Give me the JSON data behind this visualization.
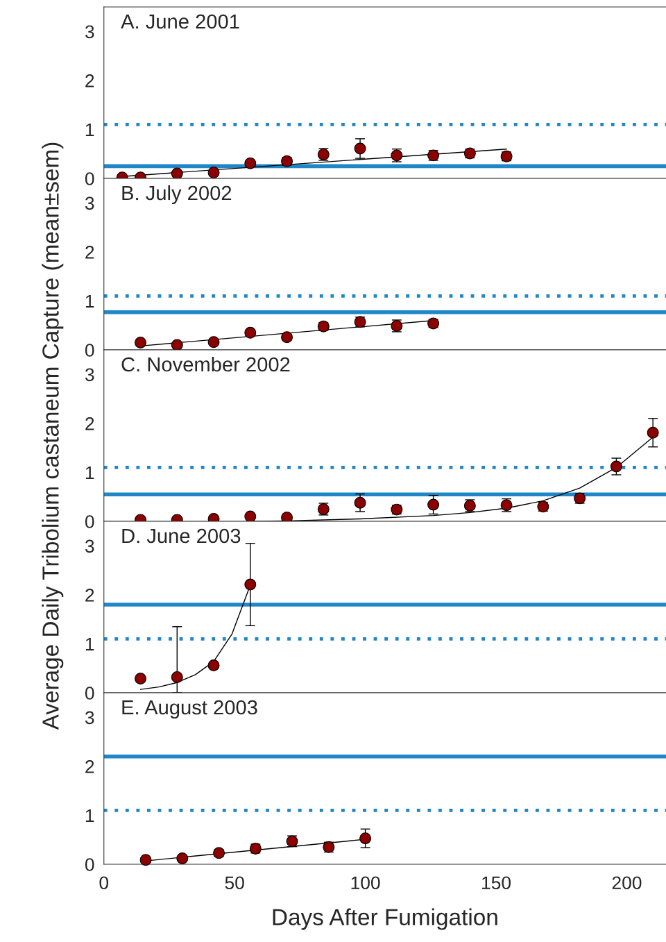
{
  "chart_data": [
    {
      "type": "scatter",
      "title": "A. June 2001",
      "xlim": [
        0,
        215
      ],
      "xticks": [
        0,
        50,
        100,
        150,
        200
      ],
      "ylim": [
        0,
        3.5
      ],
      "yticks": [
        0,
        1,
        2,
        3
      ],
      "tick_labels": "y",
      "series": [
        {
          "marker": "circle",
          "color": "#8b0000",
          "x": [
            7,
            14,
            28,
            42,
            56,
            70,
            84,
            98,
            112,
            126,
            140,
            154
          ],
          "values": [
            0.02,
            0.02,
            0.1,
            0.12,
            0.31,
            0.35,
            0.49,
            0.61,
            0.47,
            0.47,
            0.51,
            0.45
          ],
          "errors": [
            null,
            null,
            null,
            null,
            0.04,
            0.08,
            0.12,
            0.2,
            0.13,
            0.1,
            0.09,
            0.09
          ]
        },
        {
          "type": "line",
          "marker": "none",
          "color": "#000000",
          "x": [
            7,
            154
          ],
          "values": [
            0.04,
            0.6
          ]
        }
      ],
      "ref_lines": [
        {
          "axis": "y",
          "value": 0.25,
          "color": "#1f87c8",
          "line_style": "solid"
        },
        {
          "axis": "y",
          "value": 1.1,
          "color": "#1f87c8",
          "line_style": "dotted"
        }
      ]
    },
    {
      "type": "scatter",
      "title": "B. July 2002",
      "xlim": [
        0,
        215
      ],
      "xticks": [
        0,
        50,
        100,
        150,
        200
      ],
      "ylim": [
        0,
        3.5
      ],
      "yticks": [
        0,
        1,
        2,
        3
      ],
      "tick_labels": "y",
      "series": [
        {
          "marker": "circle",
          "color": "#8b0000",
          "x": [
            14,
            28,
            42,
            56,
            70,
            84,
            98,
            112,
            126
          ],
          "values": [
            0.15,
            0.1,
            0.16,
            0.35,
            0.26,
            0.48,
            0.57,
            0.49,
            0.54
          ],
          "errors": [
            0.05,
            0.03,
            0.04,
            0.06,
            0.06,
            0.08,
            0.1,
            0.12,
            0.08
          ]
        },
        {
          "type": "line",
          "marker": "none",
          "color": "#000000",
          "x": [
            14,
            126
          ],
          "values": [
            0.08,
            0.6
          ]
        }
      ],
      "ref_lines": [
        {
          "axis": "y",
          "value": 0.77,
          "color": "#1f87c8",
          "line_style": "solid"
        },
        {
          "axis": "y",
          "value": 1.1,
          "color": "#1f87c8",
          "line_style": "dotted"
        }
      ]
    },
    {
      "type": "scatter",
      "title": "C. November 2002",
      "ylabel": "Average Daily Tribolium castaneum Capture (mean±sem)",
      "xlim": [
        0,
        215
      ],
      "xticks": [
        0,
        50,
        100,
        150,
        200
      ],
      "ylim": [
        0,
        3.5
      ],
      "yticks": [
        0,
        1,
        2,
        3
      ],
      "tick_labels": "y",
      "series": [
        {
          "marker": "circle",
          "color": "#8b0000",
          "x": [
            14,
            28,
            42,
            56,
            70,
            84,
            98,
            112,
            126,
            140,
            154,
            168,
            182,
            196,
            210
          ],
          "values": [
            0.03,
            0.03,
            0.05,
            0.1,
            0.08,
            0.25,
            0.38,
            0.24,
            0.34,
            0.32,
            0.33,
            0.3,
            0.47,
            1.12,
            1.81
          ],
          "errors": [
            null,
            null,
            null,
            0.03,
            0.02,
            0.12,
            0.18,
            0.09,
            0.19,
            0.12,
            0.13,
            0.09,
            0.1,
            0.17,
            0.29
          ]
        },
        {
          "type": "line",
          "marker": "none",
          "color": "#000000",
          "x": [
            56,
            70,
            98,
            126,
            140,
            154,
            168,
            182,
            196,
            210
          ],
          "values": [
            0.0,
            0.01,
            0.05,
            0.12,
            0.18,
            0.27,
            0.42,
            0.68,
            1.1,
            1.72
          ]
        }
      ],
      "ref_lines": [
        {
          "axis": "y",
          "value": 0.55,
          "color": "#1f87c8",
          "line_style": "solid"
        },
        {
          "axis": "y",
          "value": 1.1,
          "color": "#1f87c8",
          "line_style": "dotted"
        }
      ]
    },
    {
      "type": "scatter",
      "title": "D. June 2003",
      "xlim": [
        0,
        215
      ],
      "xticks": [
        0,
        50,
        100,
        150,
        200
      ],
      "ylim": [
        0,
        3.5
      ],
      "yticks": [
        0,
        1,
        2,
        3
      ],
      "tick_labels": "y",
      "series": [
        {
          "marker": "circle",
          "color": "#8b0000",
          "x": [
            14,
            28,
            42,
            56
          ],
          "values": [
            0.29,
            0.32,
            0.56,
            2.21
          ],
          "errors": [
            0.03,
            [
              0,
              1.35
            ],
            0.03,
            0.84
          ]
        },
        {
          "type": "line",
          "marker": "none",
          "color": "#000000",
          "x": [
            14,
            21,
            28,
            35,
            42,
            49,
            56
          ],
          "values": [
            0.07,
            0.12,
            0.21,
            0.37,
            0.64,
            1.2,
            2.2
          ]
        }
      ],
      "ref_lines": [
        {
          "axis": "y",
          "value": 1.8,
          "color": "#1f87c8",
          "line_style": "solid"
        },
        {
          "axis": "y",
          "value": 1.1,
          "color": "#1f87c8",
          "line_style": "dotted"
        }
      ]
    },
    {
      "type": "scatter",
      "title": "E. August 2003",
      "xlabel": "Days After Fumigation",
      "xlim": [
        0,
        215
      ],
      "xticks": [
        0,
        50,
        100,
        150,
        200
      ],
      "ylim": [
        0,
        3.5
      ],
      "yticks": [
        0,
        1,
        2,
        3
      ],
      "series": [
        {
          "marker": "circle",
          "color": "#8b0000",
          "x": [
            16,
            30,
            44,
            58,
            72,
            86,
            100
          ],
          "values": [
            0.09,
            0.12,
            0.23,
            0.32,
            0.47,
            0.35,
            0.53
          ],
          "errors": [
            0.02,
            0.03,
            0.07,
            0.09,
            0.11,
            0.1,
            0.19
          ]
        },
        {
          "type": "line",
          "marker": "none",
          "color": "#000000",
          "x": [
            16,
            100
          ],
          "values": [
            0.07,
            0.51
          ]
        }
      ],
      "ref_lines": [
        {
          "axis": "y",
          "value": 2.2,
          "color": "#1f87c8",
          "line_style": "solid"
        },
        {
          "axis": "y",
          "value": 1.1,
          "color": "#1f87c8",
          "line_style": "dotted"
        }
      ]
    }
  ]
}
